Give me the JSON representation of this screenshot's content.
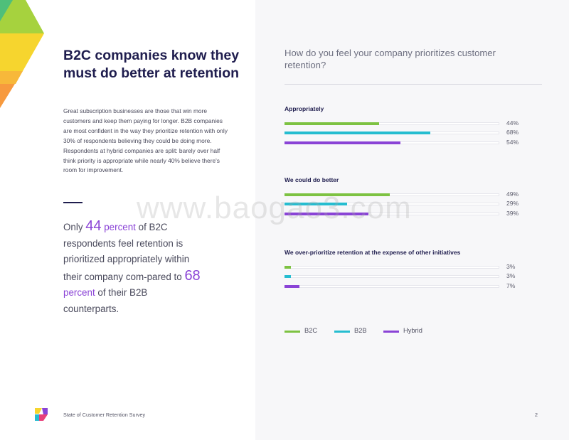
{
  "headline": "B2C companies know they must do better at retention",
  "body_text": "Great subscription businesses are those that win more customers and keep them paying for longer. B2B companies are most confident in the way they prioritize retention with only 30% of respondents believing they could be doing more. Respondents at hybrid companies are split: barely over half think priority is appropriate while nearly 40% believe there's room for improvement.",
  "pull_quote": {
    "p1": "Only ",
    "n1": "44",
    "pct1": " percent",
    "p2": " of B2C respondents feel retention is prioritized appropriately within their company com-pared to ",
    "n2": "68",
    "pct2": " percent",
    "p3": " of their B2B counterparts."
  },
  "footer": {
    "title": "State of Customer Retention Survey",
    "page_number": "2"
  },
  "watermark": "www.baogao3.com",
  "colors": {
    "b2c": "#7dc242",
    "b2b": "#25bdd0",
    "hybrid": "#8a43d6"
  },
  "chart_data": {
    "type": "bar",
    "orientation": "horizontal",
    "title": "How do you feel your company prioritizes customer retention?",
    "categories": [
      "Appropriately",
      "We could do better",
      "We over-prioritize retention at the expense of other initiatives"
    ],
    "series": [
      {
        "name": "B2C",
        "values": [
          44,
          49,
          3
        ]
      },
      {
        "name": "B2B",
        "values": [
          68,
          29,
          3
        ]
      },
      {
        "name": "Hybrid",
        "values": [
          54,
          39,
          7
        ]
      }
    ],
    "value_labels": [
      [
        "44%",
        "68%",
        "54%"
      ],
      [
        "49%",
        "29%",
        "39%"
      ],
      [
        "3%",
        "3%",
        "7%"
      ]
    ],
    "xlim": [
      0,
      100
    ],
    "legend_position": "bottom",
    "grid": false
  }
}
